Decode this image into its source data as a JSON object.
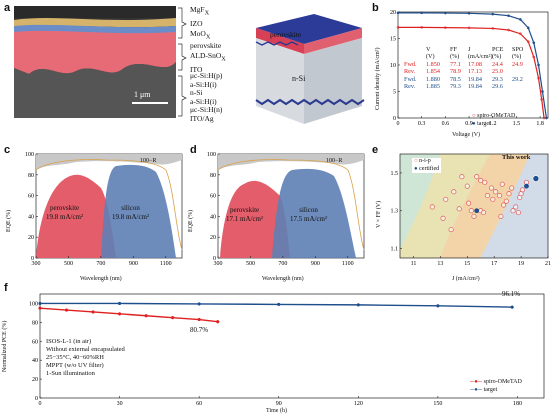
{
  "panels": {
    "a": "a",
    "b": "b",
    "c": "c",
    "d": "d",
    "e": "e",
    "f": "f"
  },
  "panel_a": {
    "scale_bar": "1 μm",
    "layers_top": [
      "MgF",
      "IZO",
      "MoO"
    ],
    "layers_top_sub": [
      "X",
      "",
      "X"
    ],
    "layers_mid": [
      "perovskite",
      "ALD-SnO",
      "ITO"
    ],
    "layers_bot": [
      "μc-Si:H(p)",
      "a-Si:H(i)",
      "n-Si",
      "a-Si:H(i)",
      "μc-Si:H(n)",
      "ITO/Ag"
    ],
    "device_top_label": "perovskite",
    "device_body_label": "n-Si"
  },
  "panel_b": {
    "ylabel": "Current density (mA/cm²)",
    "xlabel": "Voltage (V)",
    "table_headers": [
      "V",
      "FF",
      "J",
      "PCE",
      "SPO"
    ],
    "table_units": [
      "(V)",
      "(%)",
      "(mA/cm²)",
      "(%)",
      "(%)"
    ],
    "rows": [
      {
        "label": "Fwd.",
        "voc": "1.850",
        "ff": "77.1",
        "jsc": "17.08",
        "pce": "24.4",
        "spo": "24.9",
        "color": "#e02020"
      },
      {
        "label": "Rev.",
        "voc": "1.854",
        "ff": "78.9",
        "jsc": "17.13",
        "pce": "25.0",
        "spo": "",
        "color": "#e02020"
      },
      {
        "label": "Fwd.",
        "voc": "1.880",
        "ff": "78.5",
        "jsc": "19.84",
        "pce": "29.3",
        "spo": "29.2",
        "color": "#1f4e8c"
      },
      {
        "label": "Rev.",
        "voc": "1.885",
        "ff": "79.3",
        "jsc": "19.84",
        "pce": "29.6",
        "spo": "",
        "color": "#1f4e8c"
      }
    ],
    "legend": [
      "spiro-OMeTAD",
      "target"
    ]
  },
  "panel_c": {
    "label_100r": "100−R",
    "perovskite": "perovskite",
    "perovskite_val": "19.8 mA/cm²",
    "silicon": "silicon",
    "silicon_val": "19.8 mA/cm²",
    "ylabel": "EQE (%)",
    "xlabel": "Wavelength (nm)"
  },
  "panel_d": {
    "label_100r": "100−R",
    "perovskite": "perovskite",
    "perovskite_val": "17.1 mA/cm²",
    "silicon": "silicon",
    "silicon_val": "17.5 mA/cm²",
    "ylabel": "EQE (%)",
    "xlabel": "Wavelength (nm)"
  },
  "panel_e": {
    "ylabel": "V × FF (V)",
    "xlabel": "J (mA/cm²)",
    "legend": [
      "n-i-p",
      "certified"
    ],
    "this_work": "This work"
  },
  "panel_f": {
    "ylabel": "Normalized PCE (%)",
    "xlabel": "Time (h)",
    "end_blue": "96.1%",
    "end_red": "80.7%",
    "notes": [
      "ISOS-L-1 (in air)",
      "Without external encapsulated",
      "25−35°C, 40−60%RH",
      "MPPT (w/o UV filter)",
      "1-Sun illumination"
    ],
    "legend": [
      "spiro-OMeTAD",
      "target"
    ]
  },
  "chart_data": [
    {
      "type": "line",
      "panel": "b",
      "xlabel": "Voltage (V)",
      "ylabel": "Current density (mA/cm²)",
      "xlim": [
        0,
        1.9
      ],
      "ylim": [
        0,
        20
      ],
      "xticks": [
        "0",
        "0.3",
        "0.6",
        "0.9",
        "1.2",
        "1.5",
        "1.8"
      ],
      "yticks": [
        "0",
        "5",
        "10",
        "15",
        "20"
      ],
      "series": [
        {
          "name": "spiro-OMeTAD",
          "color": "#e02020",
          "x": [
            0,
            0.3,
            0.6,
            0.9,
            1.2,
            1.4,
            1.55,
            1.65,
            1.72,
            1.78,
            1.82,
            1.85
          ],
          "y": [
            17.1,
            17.1,
            17.05,
            17.0,
            16.9,
            16.6,
            15.9,
            14.4,
            11.5,
            7.5,
            3.5,
            0
          ]
        },
        {
          "name": "target",
          "color": "#1f4e8c",
          "x": [
            0,
            0.3,
            0.6,
            0.9,
            1.2,
            1.4,
            1.55,
            1.65,
            1.72,
            1.78,
            1.83,
            1.88
          ],
          "y": [
            19.84,
            19.84,
            19.8,
            19.75,
            19.6,
            19.3,
            18.6,
            17.0,
            14.2,
            10.0,
            5.0,
            0
          ]
        }
      ]
    },
    {
      "type": "area",
      "panel": "c",
      "xlabel": "Wavelength (nm)",
      "ylabel": "EQE (%)",
      "xlim": [
        300,
        1200
      ],
      "ylim": [
        0,
        100
      ],
      "xticks": [
        "300",
        "500",
        "700",
        "900",
        "1100"
      ],
      "yticks": [
        "0",
        "20",
        "40",
        "60",
        "80",
        "100"
      ]
    },
    {
      "type": "area",
      "panel": "d",
      "xlabel": "Wavelength (nm)",
      "ylabel": "EQE (%)",
      "xlim": [
        300,
        1200
      ],
      "ylim": [
        0,
        100
      ],
      "xticks": [
        "300",
        "500",
        "700",
        "900",
        "1100"
      ],
      "yticks": [
        "0",
        "20",
        "40",
        "60",
        "80",
        "100"
      ]
    },
    {
      "type": "scatter",
      "panel": "e",
      "xlabel": "J (mA/cm²)",
      "ylabel": "V × FF (V)",
      "xlim": [
        10,
        21
      ],
      "ylim": [
        1.05,
        1.6
      ],
      "xticks": [
        "11",
        "13",
        "15",
        "17",
        "19",
        "21"
      ],
      "yticks": [
        "1.1",
        "1.3",
        "1.5"
      ],
      "series": [
        {
          "name": "n-i-p",
          "x": [
            13.4,
            14.0,
            14.6,
            15.0,
            15.3,
            15.7,
            16.0,
            16.3,
            16.5,
            16.8,
            17.1,
            17.4,
            17.6,
            17.9,
            18.1,
            18.3,
            18.6,
            18.9,
            19.1,
            19.4,
            13.2,
            14.4,
            15.1,
            16.0,
            16.9,
            17.7,
            18.4,
            19.0,
            16.2,
            17.5,
            15.5,
            18.8,
            12.4,
            13.8
          ],
          "y": [
            1.36,
            1.4,
            1.48,
            1.43,
            1.3,
            1.48,
            1.46,
            1.45,
            1.38,
            1.42,
            1.4,
            1.38,
            1.44,
            1.35,
            1.39,
            1.42,
            1.32,
            1.37,
            1.41,
            1.45,
            1.26,
            1.31,
            1.34,
            1.3,
            1.36,
            1.33,
            1.3,
            1.39,
            1.29,
            1.27,
            1.27,
            1.29,
            1.32,
            1.2
          ]
        },
        {
          "name": "certified",
          "x": [
            15.7,
            19.4
          ],
          "y": [
            1.3,
            1.43
          ]
        },
        {
          "name": "This work",
          "x": [
            20.1
          ],
          "y": [
            1.47
          ]
        }
      ]
    },
    {
      "type": "line",
      "panel": "f",
      "xlabel": "Time (h)",
      "ylabel": "Normalized PCE (%)",
      "xlim": [
        0,
        190
      ],
      "ylim": [
        0,
        110
      ],
      "xticks": [
        "0",
        "30",
        "60",
        "90",
        "120",
        "150",
        "180"
      ],
      "yticks": [
        "0",
        "20",
        "40",
        "60",
        "80",
        "100"
      ],
      "series": [
        {
          "name": "spiro-OMeTAD",
          "color": "#e02020",
          "x": [
            0,
            10,
            20,
            30,
            40,
            50,
            60,
            67
          ],
          "y": [
            95,
            93,
            91,
            89,
            87,
            85,
            83,
            80.7
          ]
        },
        {
          "name": "target",
          "color": "#1f4e8c",
          "x": [
            0,
            30,
            60,
            90,
            120,
            150,
            178
          ],
          "y": [
            100,
            100,
            99.5,
            99,
            98.5,
            97.5,
            96.1
          ]
        }
      ]
    }
  ]
}
